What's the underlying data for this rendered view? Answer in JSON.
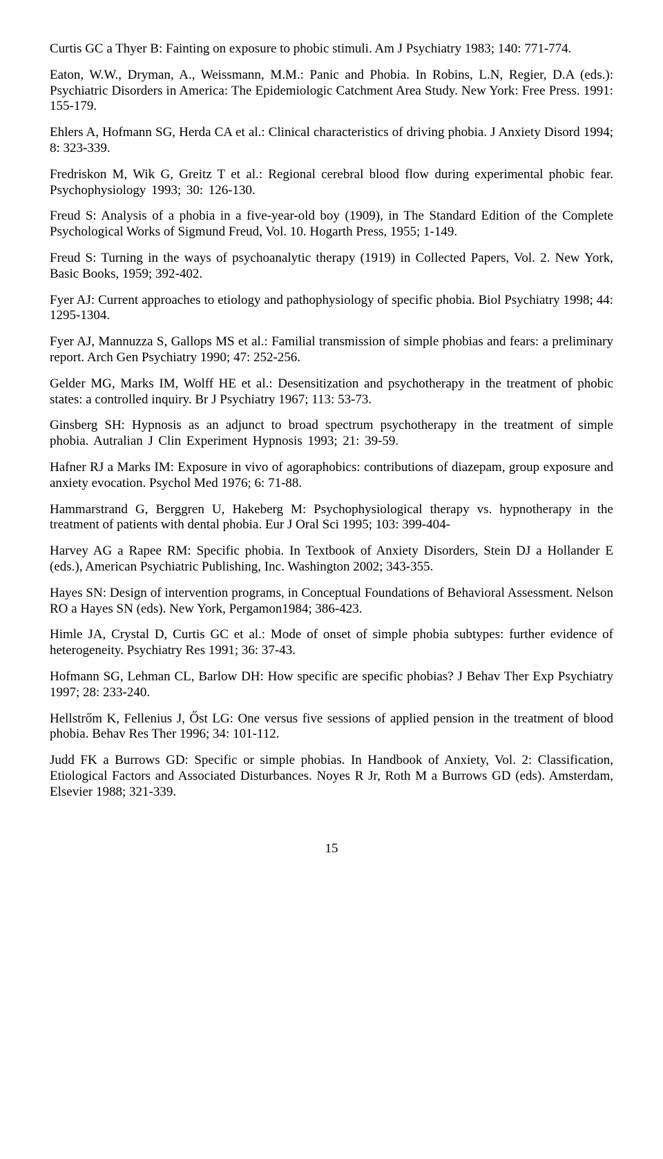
{
  "refs": [
    "Curtis GC a Thyer B: Fainting on exposure to phobic stimuli. Am J Psychiatry 1983; 140: 771-774.",
    "Eaton, W.W., Dryman, A., Weissmann, M.M.: Panic and Phobia. In Robins, L.N, Regier, D.A (eds.): Psychiatric Disorders in America: The Epidemiologic Catchment Area Study. New York: Free Press. 1991: 155-179.",
    "Ehlers A, Hofmann SG, Herda CA et al.: Clinical characteristics of driving phobia. J Anxiety Disord 1994; 8: 323-339.",
    "Fredriskon M, Wik G, Greitz T et al.: Regional cerebral blood flow during experimental phobic fear. Psychophysiology 1993; 30: 126-130.",
    "Freud S: Analysis of a phobia in a five-year-old boy (1909), in The Standard Edition of the Complete Psychological Works of Sigmund Freud, Vol. 10. Hogarth Press, 1955; 1-149.",
    "Freud S: Turning in the ways of psychoanalytic therapy (1919) in Collected Papers, Vol. 2. New York, Basic Books, 1959; 392-402.",
    "Fyer AJ: Current approaches to etiology and pathophysiology of specific phobia. Biol Psychiatry 1998; 44: 1295-1304.",
    "Fyer AJ, Mannuzza S, Gallops MS et al.: Familial transmission of simple phobias and fears: a preliminary report. Arch Gen Psychiatry 1990; 47: 252-256.",
    "Gelder MG, Marks IM, Wolff HE et al.: Desensitization and psychotherapy in the treatment of phobic states: a controlled inquiry. Br J Psychiatry 1967; 113: 53-73.",
    "Ginsberg SH: Hypnosis as an adjunct to broad spectrum psychotherapy in the treatment of simple phobia. Autralian J Clin Experiment Hypnosis 1993; 21: 39-59.",
    "Hafner RJ a Marks IM: Exposure in vivo of agoraphobics: contributions of diazepam, group exposure and anxiety evocation. Psychol Med 1976; 6: 71-88.",
    "Hammarstrand G, Berggren U, Hakeberg M: Psychophysiological therapy vs. hypnotherapy in the treatment of patients with dental phobia. Eur J Oral Sci 1995; 103: 399-404-",
    "Harvey AG a Rapee RM: Specific phobia. In Textbook of Anxiety Disorders, Stein DJ a Hollander E (eds.), American Psychiatric Publishing, Inc. Washington 2002; 343-355.",
    "Hayes SN: Design of intervention programs, in Conceptual Foundations of Behavioral Assessment. Nelson RO a Hayes SN (eds). New York, Pergamon1984; 386-423.",
    "Himle JA, Crystal D, Curtis GC et al.: Mode of onset of simple phobia subtypes: further evidence of heterogeneity. Psychiatry Res 1991; 36: 37-43.",
    "Hofmann SG, Lehman CL, Barlow DH: How specific are specific phobias? J Behav Ther Exp Psychiatry 1997; 28: 233-240.",
    "Hellstrőm K, Fellenius J, Őst LG: One versus five sessions of applied pension in the treatment of blood phobia. Behav Res Ther 1996; 34: 101-112.",
    "Judd FK a Burrows GD: Specific or simple phobias. In Handbook of Anxiety, Vol. 2: Classification, Etiological Factors and Associated Disturbances. Noyes R Jr, Roth M a Burrows GD (eds). Amsterdam, Elsevier 1988; 321-339."
  ],
  "page_number": "15"
}
